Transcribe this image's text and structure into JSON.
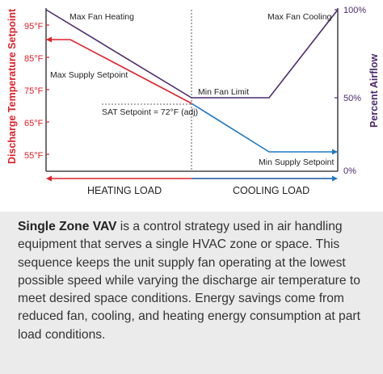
{
  "diagram": {
    "y_left_label": "Discharge Temperature Setpoint",
    "y_right_label": "Percent Airflow",
    "left_ticks": [
      "95°F",
      "85°F",
      "75°F",
      "65°F",
      "55°F"
    ],
    "right_ticks": [
      "100%",
      "50%",
      "0%"
    ],
    "annotations": {
      "max_fan_heating": "Max Fan Heating",
      "max_fan_cooling": "Max Fan Cooling",
      "max_supply_setpoint": "Max Supply Setpoint",
      "min_fan_limit": "Min Fan Limit",
      "sat_setpoint": "SAT Setpoint = 72°F (adj)",
      "min_supply_setpoint": "Min Supply Setpoint"
    },
    "load_labels": {
      "heating": "HEATING LOAD",
      "cooling": "COOLING LOAD"
    },
    "colors": {
      "temperature": "#e0202a",
      "airflow": "#4b2a6e",
      "cooling_temperature": "#1f78c0",
      "text": "#222222"
    }
  },
  "caption": {
    "title": "Single Zone VAV",
    "body": " is a control strategy used in air handling equipment that serves a single HVAC zone or space. This sequence keeps the unit supply fan operating at the lowest possible speed while varying the discharge air temperature to meet desired space conditions. Energy savings come from reduced fan, cooling, and heating energy consumption at part load conditions."
  }
}
